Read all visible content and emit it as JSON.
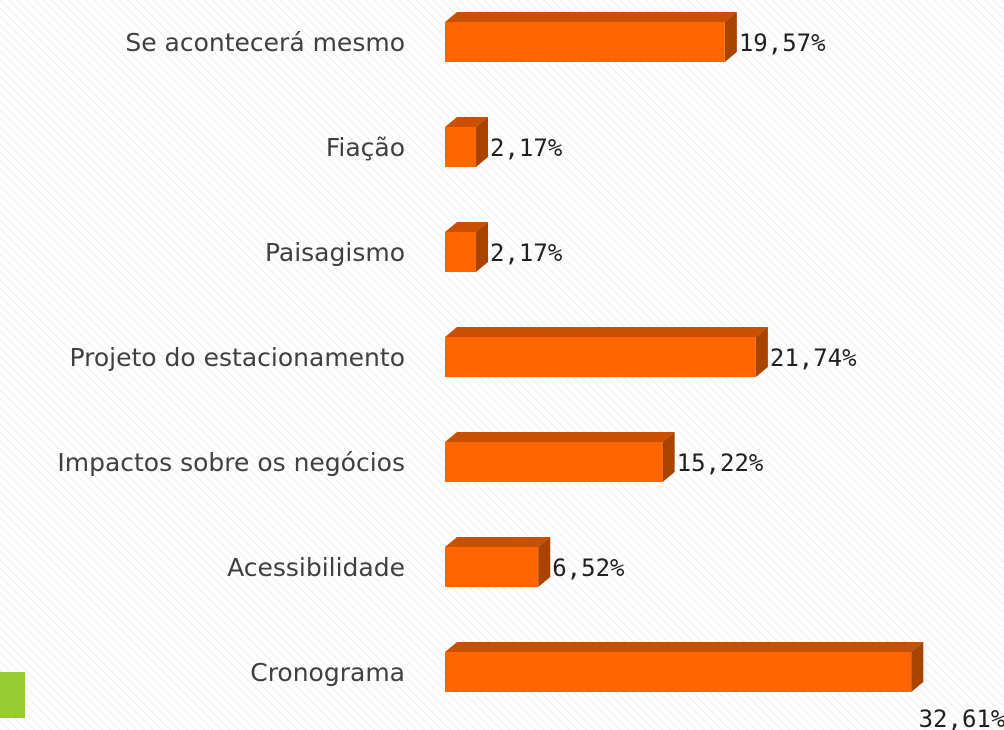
{
  "chart_data": {
    "type": "bar",
    "orientation": "horizontal",
    "categories": [
      "Se acontecerá mesmo",
      "Fiação",
      "Paisagismo",
      "Projeto do estacionamento",
      "Impactos sobre os negócios",
      "Acessibilidade",
      "Cronograma"
    ],
    "values": [
      19.57,
      2.17,
      2.17,
      21.74,
      15.22,
      6.52,
      32.61
    ],
    "value_labels": [
      "19,57%",
      "2,17%",
      "2,17%",
      "21,74%",
      "15,22%",
      "6,52%",
      "32,61%"
    ],
    "color": "#ff6600"
  }
}
